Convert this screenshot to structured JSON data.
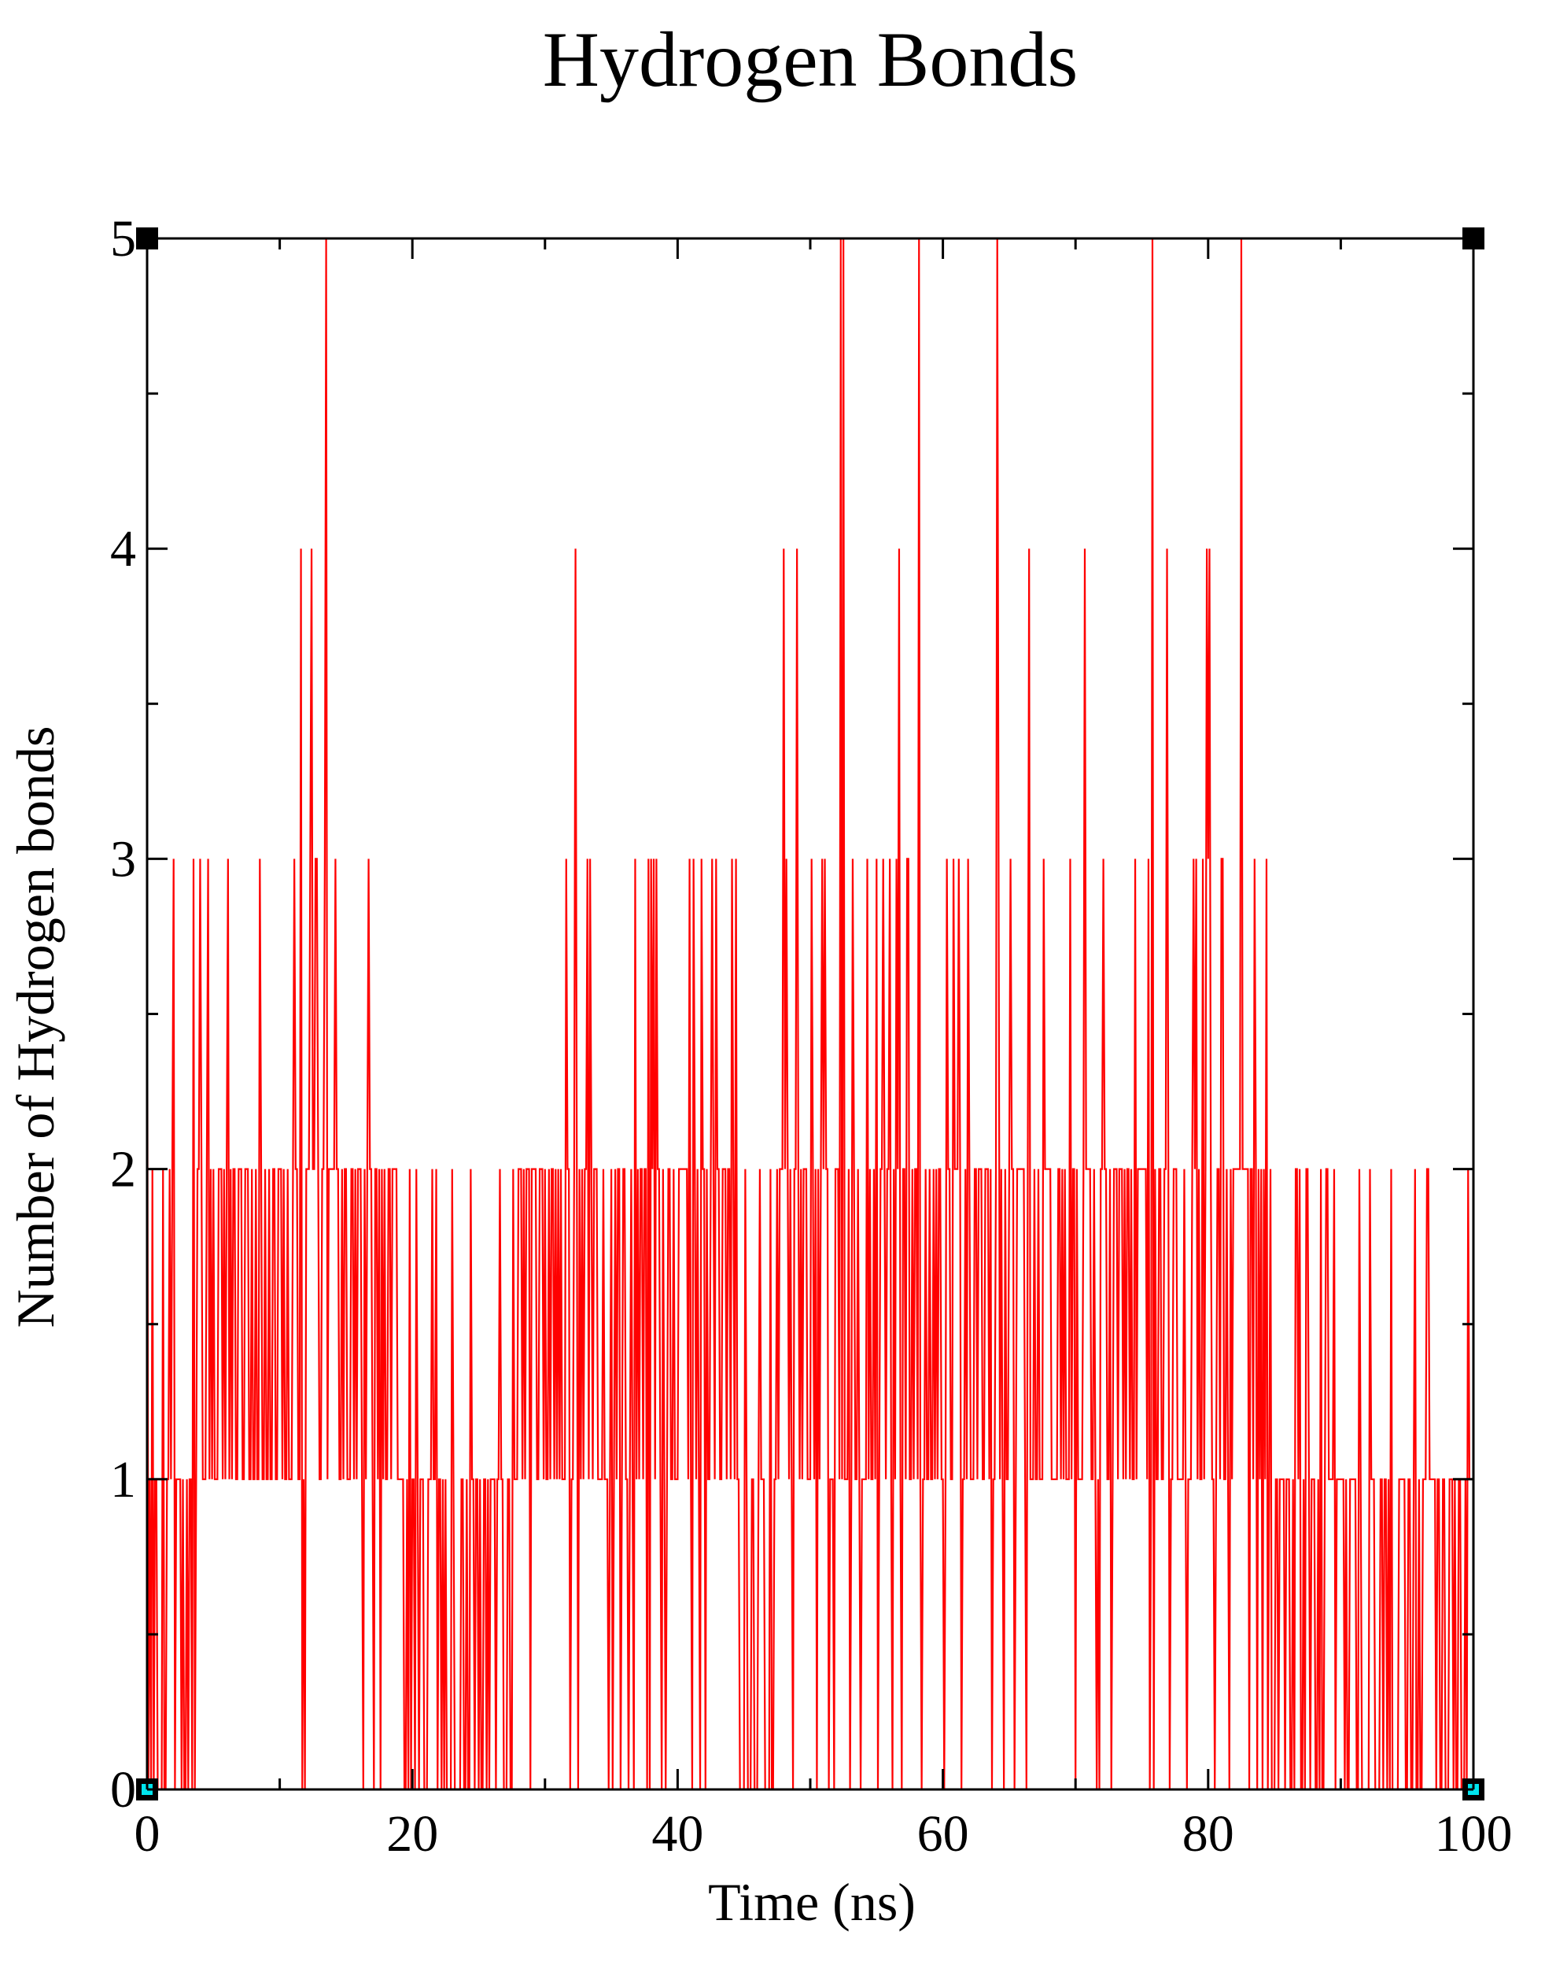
{
  "chart_data": {
    "type": "line",
    "title": "Hydrogen Bonds",
    "xlabel": "Time (ns)",
    "ylabel": "Number of Hydrogen bonds",
    "xlim": [
      0,
      100
    ],
    "ylim": [
      0,
      5
    ],
    "x_ticks": [
      0,
      20,
      40,
      60,
      80,
      100
    ],
    "y_ticks": [
      0,
      1,
      2,
      3,
      4,
      5
    ],
    "x_minor_step": 10,
    "y_minor_step": 0.5,
    "grid": false,
    "series": [
      {
        "color": "#ff0000",
        "sample_interval_ns": 0.1,
        "segments": [
          {
            "x0": 0,
            "x1": 3.5,
            "typical": 1,
            "max": 2,
            "occasional_max": 3,
            "zeros": 0.12
          },
          {
            "x0": 3.5,
            "x1": 19,
            "typical": 2,
            "max": 3,
            "occasional_max": 4,
            "zeros": 0.06
          },
          {
            "x0": 19,
            "x1": 20.5,
            "typical": 1,
            "max": 2,
            "occasional_max": 2,
            "zeros": 0.1
          },
          {
            "x0": 20.5,
            "x1": 28,
            "typical": 1,
            "max": 2,
            "occasional_max": 2,
            "zeros": 0.1
          },
          {
            "x0": 28,
            "x1": 37,
            "typical": 2,
            "max": 3,
            "occasional_max": 4,
            "zeros": 0.06
          },
          {
            "x0": 37,
            "x1": 44.5,
            "typical": 2,
            "max": 3,
            "occasional_max": 3,
            "zeros": 0.06
          },
          {
            "x0": 44.5,
            "x1": 47.5,
            "typical": 1,
            "max": 2,
            "occasional_max": 2,
            "zeros": 0.06
          },
          {
            "x0": 47.5,
            "x1": 72,
            "typical": 2,
            "max": 3,
            "occasional_max": 4,
            "zeros": 0.1
          },
          {
            "x0": 72,
            "x1": 84.5,
            "typical": 2,
            "max": 3,
            "occasional_max": 4,
            "zeros": 0.08
          },
          {
            "x0": 84.5,
            "x1": 100,
            "typical": 1,
            "max": 2,
            "occasional_max": 3,
            "zeros": 0.08
          }
        ],
        "spikes_to_5": [
          13.5,
          52.3,
          52.5,
          58.2,
          64.1,
          75.8,
          82.5
        ]
      }
    ]
  }
}
